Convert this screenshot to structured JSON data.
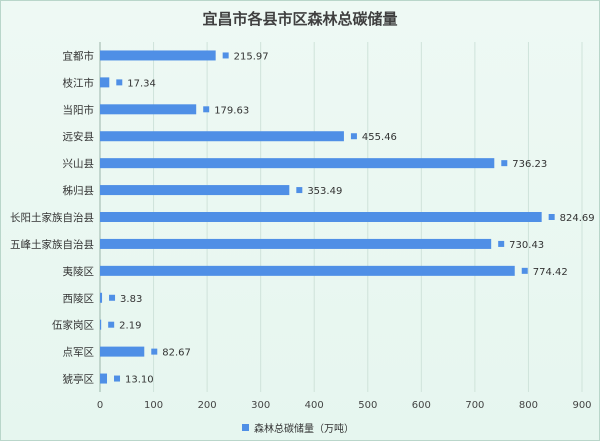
{
  "chart_data": {
    "type": "bar",
    "orientation": "horizontal",
    "title": "宜昌市各县市区森林总碳储量",
    "categories": [
      "宜都市",
      "枝江市",
      "当阳市",
      "远安县",
      "兴山县",
      "秭归县",
      "长阳土家族自治县",
      "五峰土家族自治县",
      "夷陵区",
      "西陵区",
      "伍家岗区",
      "点军区",
      "猇亭区"
    ],
    "series": [
      {
        "name": "森林总碳储量（万吨）",
        "values": [
          215.97,
          17.34,
          179.63,
          455.46,
          736.23,
          353.49,
          824.69,
          730.43,
          774.42,
          3.83,
          2.19,
          82.67,
          13.1
        ],
        "labels": [
          "215.97",
          "17.34",
          "179.63",
          "455.46",
          "736.23",
          "353.49",
          "824.69",
          "730.43",
          "774.42",
          "3.83",
          "2.19",
          "82.67",
          "13.10"
        ]
      }
    ],
    "xlim": [
      0,
      900
    ],
    "xticks": [
      0,
      100,
      200,
      300,
      400,
      500,
      600,
      700,
      800,
      900
    ],
    "xlabel": "",
    "ylabel": "",
    "grid": true,
    "legend_position": "bottom",
    "bar_color": "#4f8fe6",
    "grid_color": "#cfe3da"
  }
}
